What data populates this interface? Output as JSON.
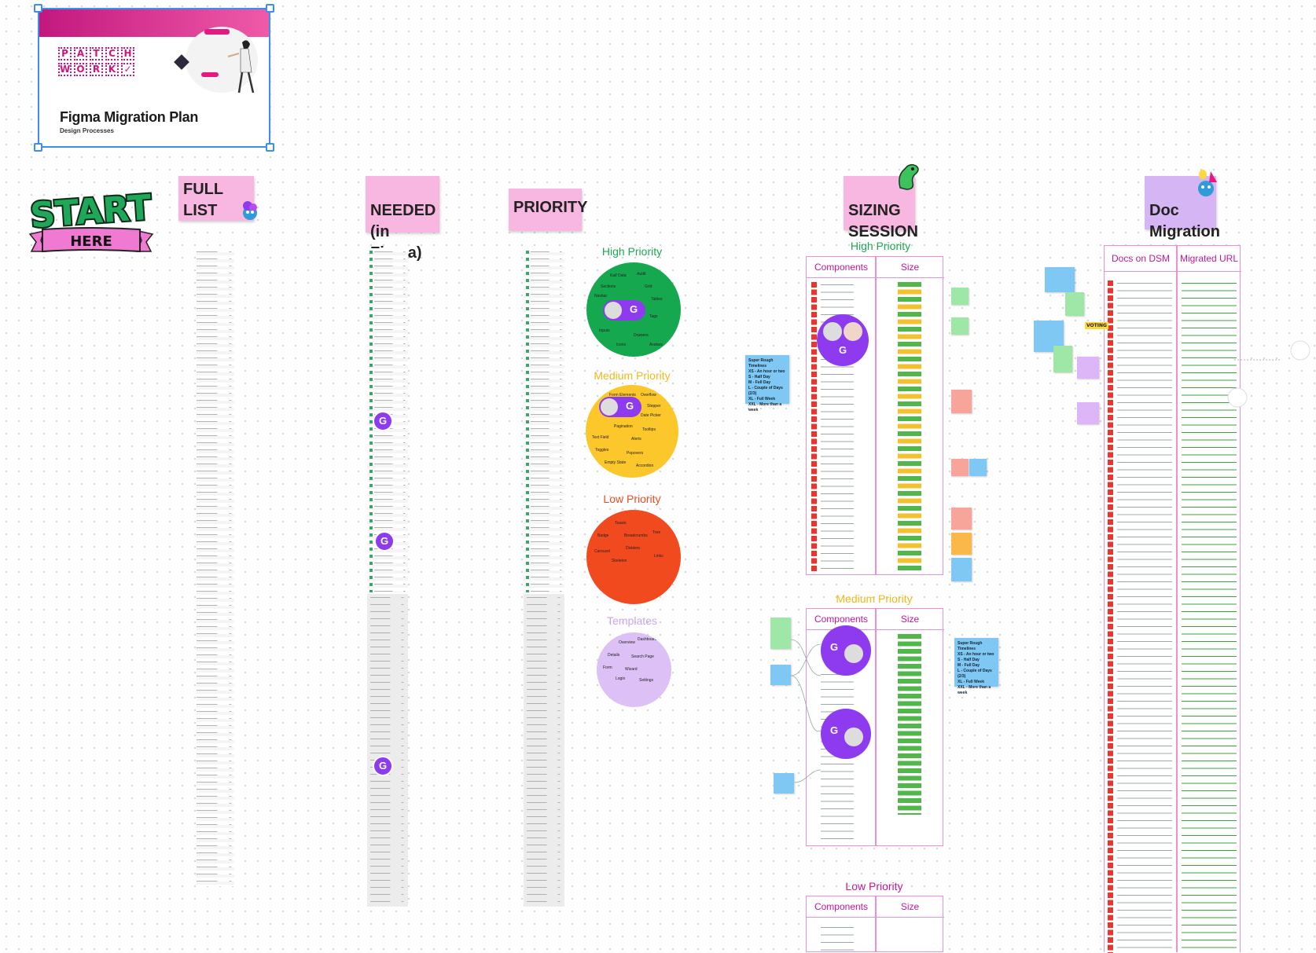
{
  "cover": {
    "logo_row1": [
      "P",
      "A",
      "T",
      "C",
      "H"
    ],
    "logo_row2": [
      "W",
      "O",
      "R",
      "K",
      "✓"
    ],
    "title": "Figma Migration Plan",
    "subtitle": "Design Processes"
  },
  "start": {
    "big": "START",
    "banner": "HERE"
  },
  "headers": {
    "full_list": "FULL LIST",
    "needed": "NEEDED\n(in Figma)",
    "priority": "PRIORITY",
    "sizing": "SIZING\nSESSION",
    "doc": "Doc\nMigration"
  },
  "priority": {
    "high": "High Priority",
    "medium": "Medium Priority",
    "low": "Low Priority",
    "templates": "Templates"
  },
  "sizing": {
    "high": "High Priority",
    "medium": "Medium Priority",
    "low": "Low Priority",
    "col_components": "Components",
    "col_size": "Size",
    "rough_timelines": "Super Rough Timelines\nXS - An hour or two\nS - Half Day\nM - Full Day\nL - Couple of Days (2/3)\nXL - Full Week\nXXL - More than a week"
  },
  "doc_migration": {
    "col_docs": "Docs on DSM",
    "col_url": "Migrated URL",
    "voting": "VOTING"
  },
  "avatar_letter": "G",
  "colors": {
    "high": "#16a84f",
    "medium": "#fcc72b",
    "low": "#f24a1f",
    "templates": "#dcc0f6",
    "accent": "#8e3bf0",
    "pink": "#f7b7e0"
  }
}
